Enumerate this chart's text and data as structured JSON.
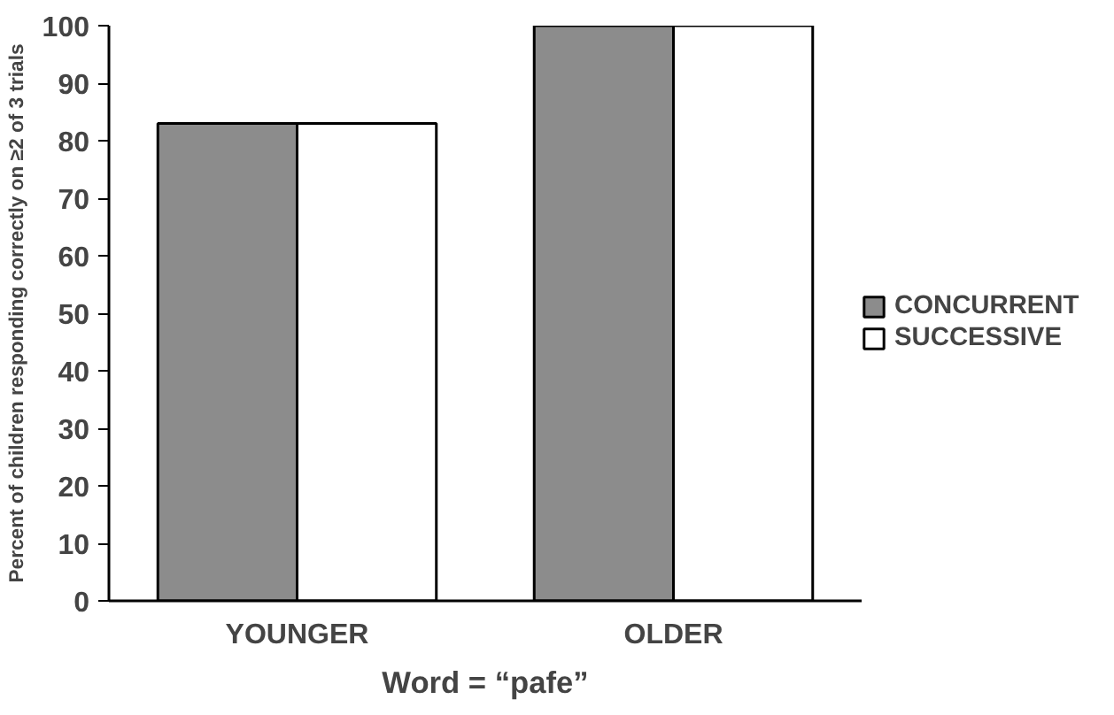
{
  "chart_data": {
    "type": "bar",
    "xlabel": "Word = “pafe”",
    "ylabel": "Percent of children responding correctly on ≥2 of 3 trials",
    "categories": [
      "YOUNGER",
      "OLDER"
    ],
    "series": [
      {
        "name": "CONCURRENT",
        "color": "#8c8c8c",
        "values": [
          83,
          100
        ]
      },
      {
        "name": "SUCCESSIVE",
        "color": "#ffffff",
        "values": [
          83,
          100
        ]
      }
    ],
    "ylim": [
      0,
      100
    ],
    "yticks": [
      0,
      10,
      20,
      30,
      40,
      50,
      60,
      70,
      80,
      90,
      100
    ],
    "grid": false,
    "legend": "right"
  }
}
